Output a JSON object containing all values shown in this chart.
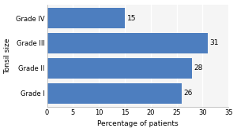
{
  "categories": [
    "Grade I",
    "Grade II",
    "Grade III",
    "Grade IV"
  ],
  "values": [
    26,
    28,
    31,
    15
  ],
  "bar_color": "#4d7ebf",
  "xlabel": "Percentage of patients",
  "ylabel": "Tonsil size",
  "xlim": [
    0,
    35
  ],
  "xticks": [
    0,
    5,
    10,
    15,
    20,
    25,
    30,
    35
  ],
  "bar_labels": [
    26,
    28,
    31,
    15
  ],
  "background_color": "#ffffff",
  "plot_bg_color": "#f5f5f5",
  "grid_color": "#ffffff",
  "label_fontsize": 6.5,
  "tick_fontsize": 6,
  "bar_label_fontsize": 6.5,
  "bar_height": 0.82
}
